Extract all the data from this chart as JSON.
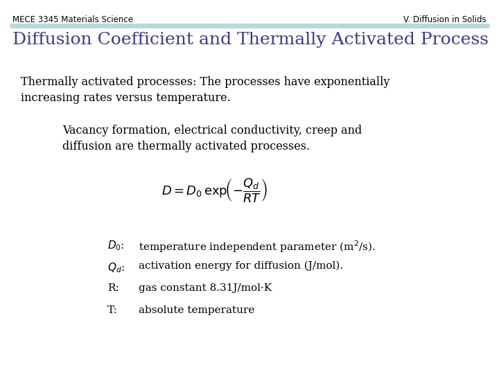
{
  "header_left": "MECE 3345 Materials Science",
  "header_right": "V. Diffusion in Solids",
  "header_line_color": "#b8d8dc",
  "title": "Diffusion Coefficient and Thermally Activated Process",
  "title_color": "#3b3b8c",
  "body_text1": "Thermally activated processes: The processes have exponentially\nincreasing rates versus temperature.",
  "body_text2": "Vacancy formation, electrical conductivity, creep and\ndiffusion are thermally activated processes.",
  "formula": "$D = D_0 \\, \\mathrm{exp}\\!\\left(-\\dfrac{Q_d}{RT}\\right)$",
  "def1_label": "$D_0$:",
  "def1_text": "temperature independent parameter (m$^2$/s).",
  "def2_label": "$Q_d$:",
  "def2_text": "activation energy for diffusion (J/mol).",
  "def3_label": "R:",
  "def3_text": "gas constant 8.31J/mol·K",
  "def4_label": "T:",
  "def4_text": "absolute temperature",
  "bg_color": "#ffffff",
  "text_color": "#000000",
  "header_fontsize": 8.5,
  "title_fontsize": 18,
  "body_fontsize": 11.5,
  "formula_fontsize": 13,
  "def_fontsize": 11
}
